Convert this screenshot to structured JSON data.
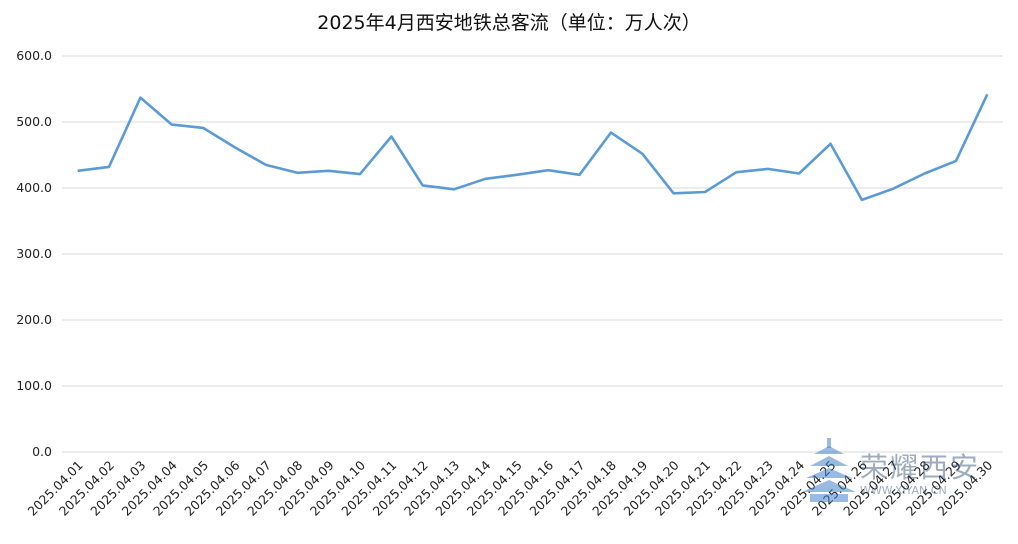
{
  "chart_data": {
    "type": "line",
    "title": "2025年4月西安地铁总客流（单位：万人次）",
    "categories": [
      "2025.04.01",
      "2025.04.02",
      "2025.04.03",
      "2025.04.04",
      "2025.04.05",
      "2025.04.06",
      "2025.04.07",
      "2025.04.08",
      "2025.04.09",
      "2025.04.10",
      "2025.04.11",
      "2025.04.12",
      "2025.04.13",
      "2025.04.14",
      "2025.04.15",
      "2025.04.16",
      "2025.04.17",
      "2025.04.18",
      "2025.04.19",
      "2025.04.20",
      "2025.04.21",
      "2025.04.22",
      "2025.04.23",
      "2025.04.24",
      "2025.04.25",
      "2025.04.26",
      "2025.04.27",
      "2025.04.28",
      "2025.04.29",
      "2025.04.30"
    ],
    "series": [
      {
        "values": [
          426,
          432,
          537,
          496,
          491,
          462,
          435,
          423,
          426,
          421,
          478,
          404,
          398,
          414,
          420,
          427,
          420,
          484,
          452,
          392,
          394,
          424,
          429,
          422,
          467,
          382,
          399,
          422,
          441,
          542
        ]
      }
    ],
    "y_ticks": [
      "0.0",
      "100.0",
      "200.0",
      "300.0",
      "400.0",
      "500.0",
      "600.0"
    ],
    "ylim": [
      0,
      600
    ],
    "grid": true,
    "line_color": "#5b9bd5"
  },
  "watermark": {
    "text": "荣耀西安",
    "sub": "WWW.XIYAN.CN"
  }
}
